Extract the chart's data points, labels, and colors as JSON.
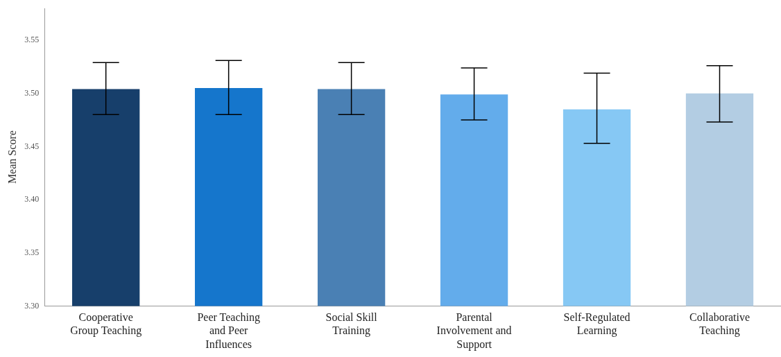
{
  "chart_data": {
    "type": "bar",
    "ylabel": "Mean Score",
    "categories": [
      "Cooperative Group Teaching",
      "Peer Teaching and Peer Influences",
      "Social Skill Training",
      "Parental Involvement and Support",
      "Self-Regulated Learning",
      "Collaborative Teaching"
    ],
    "values": [
      3.504,
      3.505,
      3.504,
      3.499,
      3.485,
      3.5
    ],
    "errors": [
      [
        3.48,
        3.529
      ],
      [
        3.48,
        3.531
      ],
      [
        3.48,
        3.529
      ],
      [
        3.475,
        3.524
      ],
      [
        3.453,
        3.519
      ],
      [
        3.473,
        3.526
      ]
    ],
    "colors": [
      "#173f6b",
      "#1576cc",
      "#4a80b4",
      "#63aceb",
      "#86c8f4",
      "#b3cde3"
    ],
    "ylim": [
      3.3,
      3.58
    ],
    "yticks": [
      {
        "value": 3.3,
        "label": "3.30"
      },
      {
        "value": 3.35,
        "label": "3.35"
      },
      {
        "value": 3.4,
        "label": "3.40"
      },
      {
        "value": 3.45,
        "label": "3.45"
      },
      {
        "value": 3.5,
        "label": "3.50"
      },
      {
        "value": 3.55,
        "label": "3.55"
      }
    ],
    "grid": false,
    "legend": false
  }
}
